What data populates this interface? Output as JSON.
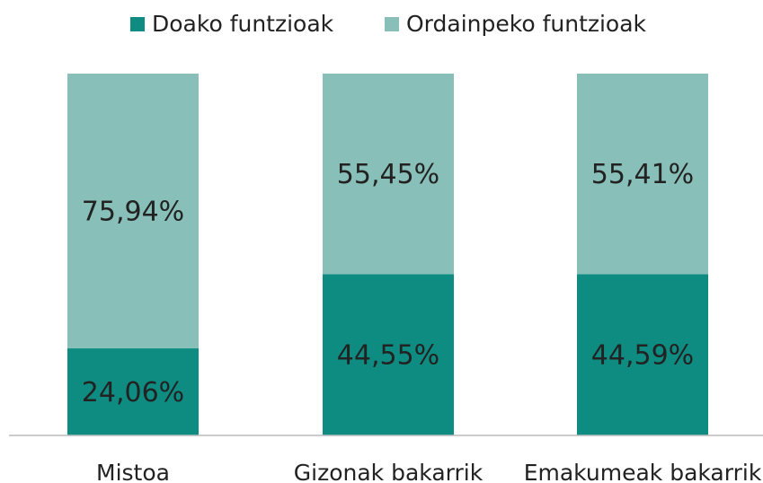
{
  "chart_data": {
    "type": "stacked_bar",
    "categories": [
      "Mistoa",
      "Gizonak bakarrik",
      "Emakumeak bakarrik"
    ],
    "series": [
      {
        "name": "Doako funtzioak",
        "color": "#0e8c82",
        "values": [
          24.06,
          44.55,
          44.59
        ],
        "value_labels": [
          "24,06%",
          "44,55%",
          "44,59%"
        ]
      },
      {
        "name": "Ordainpeko funtzioak",
        "color": "#88bfb8",
        "values": [
          75.94,
          55.45,
          55.41
        ],
        "value_labels": [
          "75,94%",
          "55,45%",
          "55,41%"
        ]
      }
    ],
    "ylim": [
      0,
      100
    ],
    "legend": "top"
  }
}
